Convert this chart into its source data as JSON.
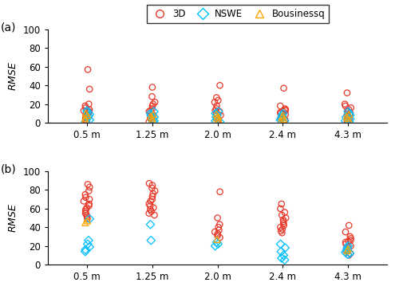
{
  "categories": [
    "0.5 m",
    "1.25 m",
    "2.0 m",
    "2.4 m",
    "4.3 m"
  ],
  "panel_a_label": "(a)",
  "panel_b_label": "(b)",
  "ylim": [
    0,
    100
  ],
  "yticks": [
    0,
    20,
    40,
    60,
    80,
    100
  ],
  "legend_labels": [
    "3D",
    "NSWE",
    "Bousinessq"
  ],
  "colors": {
    "3D": "#e8392a",
    "NSWE": "#00bfff",
    "Bousinessq": "#ffa500"
  },
  "panel_a": {
    "3D": {
      "0.5 m": [
        57,
        36,
        20,
        18,
        16,
        14,
        13,
        12,
        11,
        9,
        8,
        5,
        3,
        1
      ],
      "1.25 m": [
        38,
        28,
        22,
        20,
        18,
        15,
        13,
        12,
        10,
        8,
        5,
        3,
        1
      ],
      "2.0 m": [
        40,
        27,
        24,
        22,
        18,
        15,
        13,
        12,
        10,
        8,
        5,
        3,
        1
      ],
      "2.4 m": [
        37,
        18,
        15,
        14,
        13,
        12,
        11,
        10,
        9,
        7,
        5,
        3,
        1
      ],
      "4.3 m": [
        32,
        20,
        18,
        16,
        14,
        13,
        12,
        10,
        8,
        6,
        4,
        2
      ]
    },
    "NSWE": {
      "0.5 m": [
        13,
        11,
        9,
        7,
        5,
        3,
        1
      ],
      "1.25 m": [
        12,
        10,
        8,
        6,
        4,
        2,
        1
      ],
      "2.0 m": [
        12,
        10,
        8,
        6,
        4,
        2,
        1
      ],
      "2.4 m": [
        10,
        8,
        6,
        4,
        3,
        2,
        1
      ],
      "4.3 m": [
        12,
        10,
        8,
        6,
        4,
        2,
        1
      ]
    },
    "Bousinessq": {
      "0.5 m": [
        10,
        8,
        5,
        3
      ],
      "1.25 m": [
        9,
        7,
        5,
        3
      ],
      "2.0 m": [
        9,
        7,
        5,
        3
      ],
      "2.4 m": [
        8,
        6,
        4,
        2
      ],
      "4.3 m": [
        9,
        7,
        5,
        3
      ]
    }
  },
  "panel_b": {
    "3D": {
      "0.5 m": [
        86,
        83,
        79,
        75,
        72,
        70,
        68,
        65,
        63,
        61,
        59,
        57,
        55,
        53,
        51,
        49
      ],
      "1.25 m": [
        87,
        85,
        82,
        79,
        76,
        73,
        70,
        68,
        65,
        63,
        61,
        59,
        57,
        55,
        53
      ],
      "2.0 m": [
        78,
        50,
        43,
        40,
        37,
        35,
        33,
        31,
        29
      ],
      "2.4 m": [
        65,
        60,
        56,
        53,
        50,
        48,
        46,
        44,
        42,
        40,
        38,
        36,
        34
      ],
      "4.3 m": [
        42,
        35,
        30,
        28,
        26,
        25,
        24,
        22,
        20,
        18,
        15,
        12,
        10
      ]
    },
    "NSWE": {
      "0.5 m": [
        49,
        26,
        22,
        19,
        16,
        14
      ],
      "1.25 m": [
        43,
        26
      ],
      "2.0 m": [
        24,
        22,
        20
      ],
      "2.4 m": [
        22,
        18,
        14,
        10,
        7,
        5
      ],
      "4.3 m": [
        20,
        18,
        16,
        15,
        13,
        12,
        11
      ]
    },
    "Bousinessq": {
      "0.5 m": [
        47,
        45
      ],
      "1.25 m": [],
      "2.0 m": [
        27
      ],
      "2.4 m": [],
      "4.3 m": [
        17,
        15
      ]
    }
  }
}
